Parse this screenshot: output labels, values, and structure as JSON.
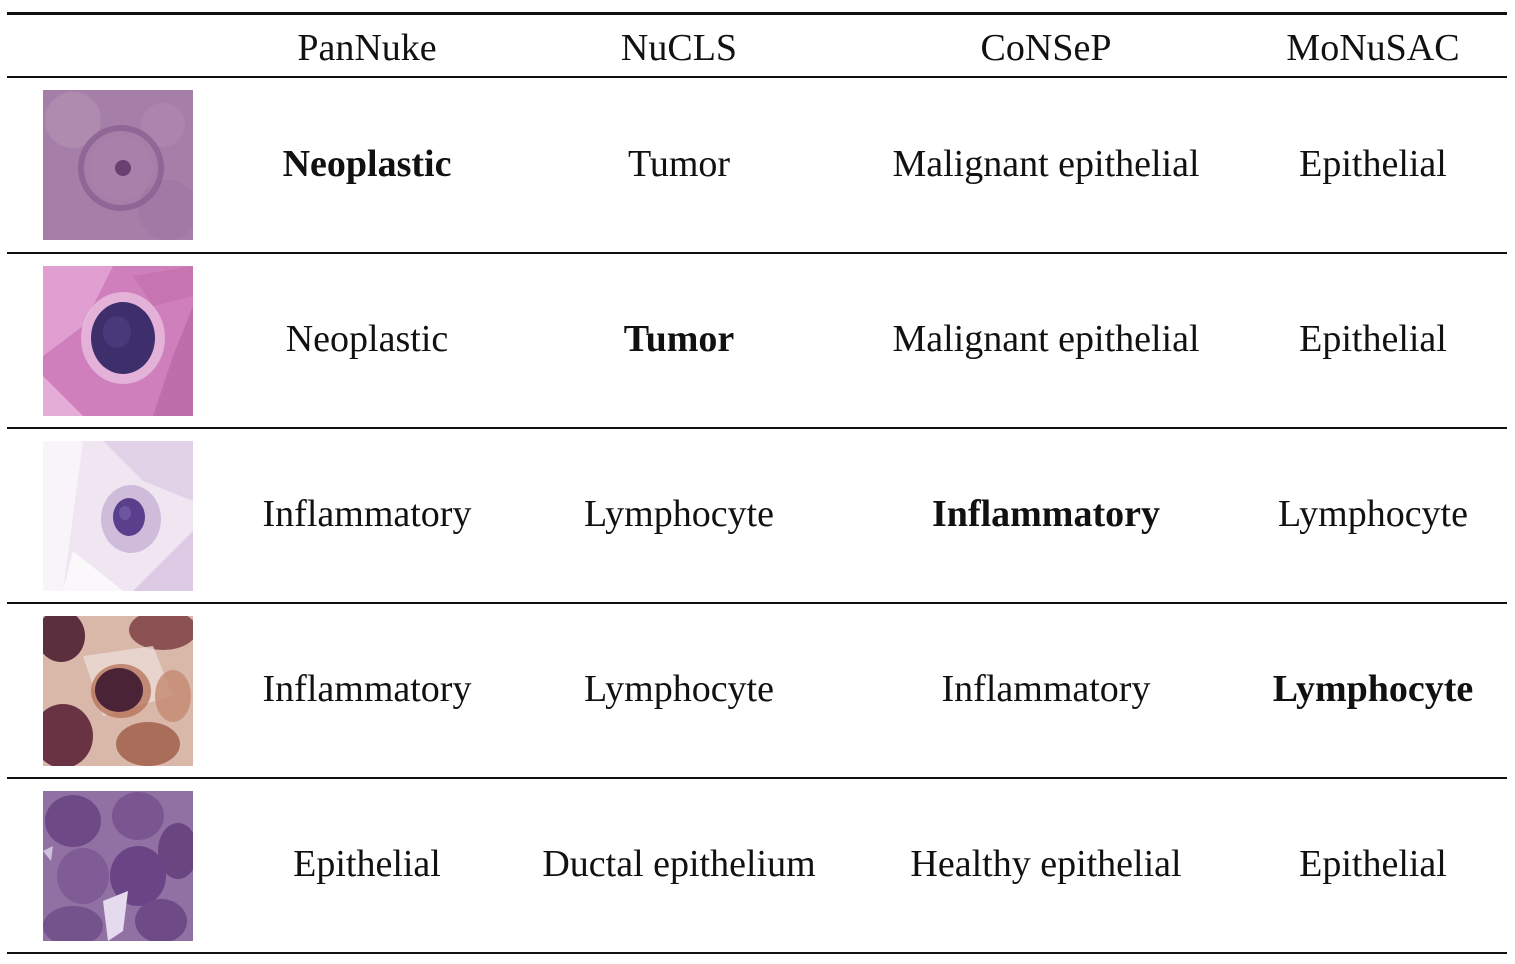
{
  "table": {
    "columns": [
      "PanNuke",
      "NuCLS",
      "CoNSeP",
      "MoNuSAC"
    ],
    "rows": [
      {
        "thumbnail": "nucleus-thumbnail-1",
        "cells": [
          "Neoplastic",
          "Tumor",
          "Malignant epithelial",
          "Epithelial"
        ],
        "bold_column": 0
      },
      {
        "thumbnail": "nucleus-thumbnail-2",
        "cells": [
          "Neoplastic",
          "Tumor",
          "Malignant epithelial",
          "Epithelial"
        ],
        "bold_column": 1
      },
      {
        "thumbnail": "nucleus-thumbnail-3",
        "cells": [
          "Inflammatory",
          "Lymphocyte",
          "Inflammatory",
          "Lymphocyte"
        ],
        "bold_column": 2
      },
      {
        "thumbnail": "nucleus-thumbnail-4",
        "cells": [
          "Inflammatory",
          "Lymphocyte",
          "Inflammatory",
          "Lymphocyte"
        ],
        "bold_column": 3
      },
      {
        "thumbnail": "nucleus-thumbnail-5",
        "cells": [
          "Epithelial",
          "Ductal epithelium",
          "Healthy epithelial",
          "Epithelial"
        ],
        "bold_column": null
      }
    ]
  }
}
